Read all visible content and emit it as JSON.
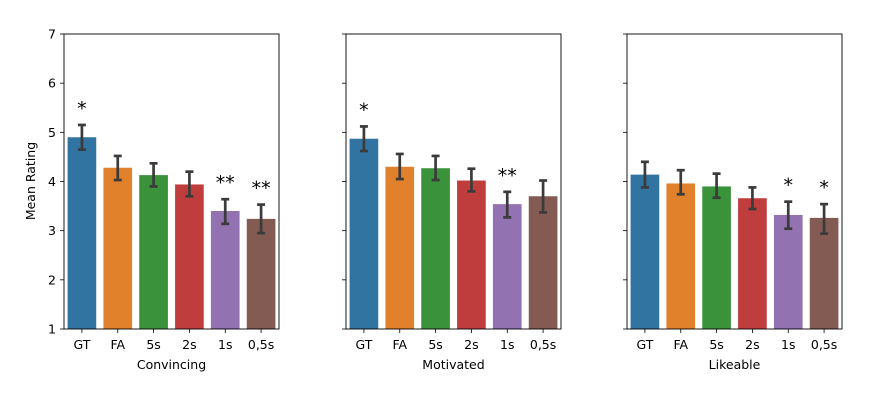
{
  "chart_data": {
    "type": "bar",
    "ylabel": "Mean Rating",
    "ylim": [
      1,
      7
    ],
    "yticks": [
      1,
      2,
      3,
      4,
      5,
      6,
      7
    ],
    "categories": [
      "GT",
      "FA",
      "5s",
      "2s",
      "1s",
      "0,5s"
    ],
    "colors": [
      "#3274a1",
      "#e1812c",
      "#3a923a",
      "#c03d3e",
      "#9372b2",
      "#845b53"
    ],
    "error_color": "#3b3b3b",
    "panels": [
      {
        "xlabel": "Convincing",
        "values": [
          4.9,
          4.28,
          4.13,
          3.94,
          3.4,
          3.24
        ],
        "err_low": [
          4.65,
          4.03,
          3.9,
          3.7,
          3.14,
          2.95
        ],
        "err_high": [
          5.15,
          4.52,
          4.37,
          4.2,
          3.64,
          3.53
        ],
        "annotations": [
          "*",
          "",
          "",
          "",
          "**",
          "**"
        ]
      },
      {
        "xlabel": "Motivated",
        "values": [
          4.87,
          4.3,
          4.27,
          4.02,
          3.54,
          3.7
        ],
        "err_low": [
          4.62,
          4.05,
          4.03,
          3.8,
          3.27,
          3.37
        ],
        "err_high": [
          5.12,
          4.56,
          4.52,
          4.26,
          3.79,
          4.02
        ],
        "annotations": [
          "*",
          "",
          "",
          "",
          "**",
          ""
        ]
      },
      {
        "xlabel": "Likeable",
        "values": [
          4.14,
          3.96,
          3.9,
          3.66,
          3.32,
          3.26
        ],
        "err_low": [
          3.88,
          3.74,
          3.67,
          3.44,
          3.04,
          2.94
        ],
        "err_high": [
          4.4,
          4.23,
          4.16,
          3.88,
          3.59,
          3.54
        ],
        "annotations": [
          "",
          "",
          "",
          "",
          "*",
          "*"
        ]
      }
    ]
  }
}
